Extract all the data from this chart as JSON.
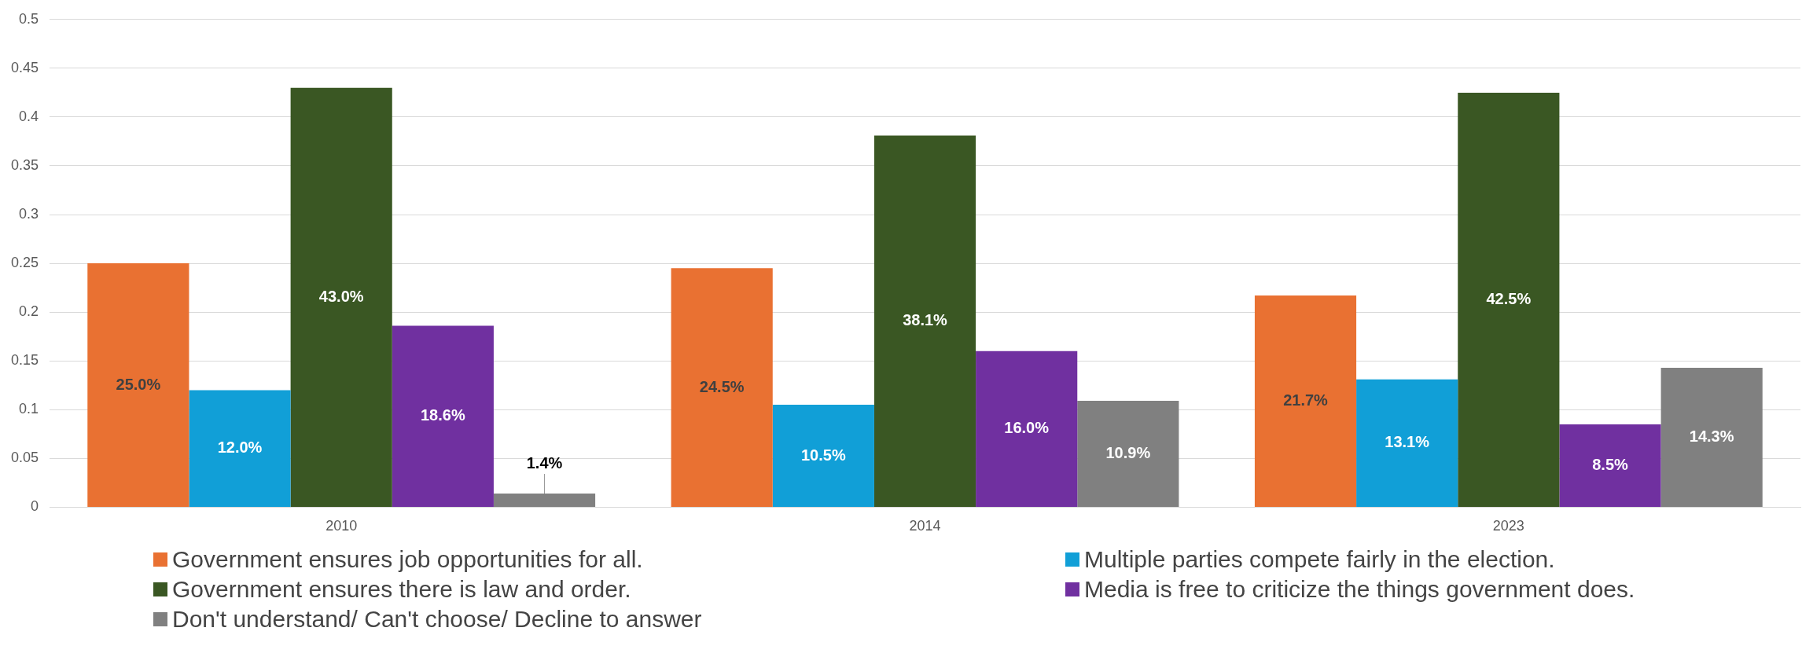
{
  "chart_data": {
    "type": "bar",
    "categories": [
      "2010",
      "2014",
      "2023"
    ],
    "series": [
      {
        "name": "Government ensures job opportunities for all.",
        "color": "#e97132",
        "values": [
          0.25,
          0.245,
          0.217
        ],
        "value_labels": [
          "25.0%",
          "24.5%",
          "21.7%"
        ]
      },
      {
        "name": "Multiple parties compete fairly in the election.",
        "color": "#119fd7",
        "values": [
          0.12,
          0.105,
          0.131
        ],
        "value_labels": [
          "12.0%",
          "10.5%",
          "13.1%"
        ]
      },
      {
        "name": "Government ensures there is law and order.",
        "color": "#3a5723",
        "values": [
          0.43,
          0.381,
          0.425
        ],
        "value_labels": [
          "43.0%",
          "38.1%",
          "42.5%"
        ]
      },
      {
        "name": "Media is free to criticize the things government does.",
        "color": "#7030a0",
        "values": [
          0.186,
          0.16,
          0.085
        ],
        "value_labels": [
          "18.6%",
          "16.0%",
          "8.5%"
        ]
      },
      {
        "name": "Don't understand/ Can't choose/ Decline to answer",
        "color": "#808080",
        "values": [
          0.014,
          0.109,
          0.143
        ],
        "value_labels": [
          "1.4%",
          "10.9%",
          "14.3%"
        ]
      }
    ],
    "ylim": [
      0,
      0.5
    ],
    "yticks": [
      0,
      0.05,
      0.1,
      0.15,
      0.2,
      0.25,
      0.3,
      0.35,
      0.4,
      0.45,
      0.5
    ],
    "grid": "y",
    "legend": "bottom"
  }
}
